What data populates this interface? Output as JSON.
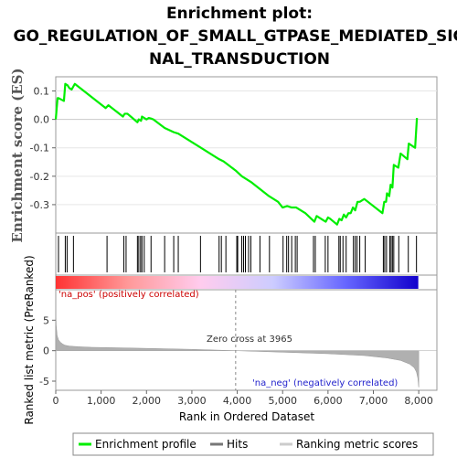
{
  "title_lines": [
    "Enrichment plot:",
    "GO_REGULATION_OF_SMALL_GTPASE_MEDIATED_SIG",
    "NAL_TRANSDUCTION"
  ],
  "chart_data": {
    "type": "line",
    "title": "Enrichment plot: GO_REGULATION_OF_SMALL_GTPASE_MEDIATED_SIGNAL_TRANSDUCTION",
    "xlabel": "Rank in Ordered Dataset",
    "es_ylabel": "Enrichment score (ES)",
    "metric_ylabel": "Ranked list metric (PreRanked)",
    "xlim": [
      0,
      8400
    ],
    "x_ticks": [
      0,
      1000,
      2000,
      3000,
      4000,
      5000,
      6000,
      7000,
      8000
    ],
    "x_tick_labels": [
      "0",
      "1,000",
      "2,000",
      "3,000",
      "4,000",
      "5,000",
      "6,000",
      "7,000",
      "8,000"
    ],
    "es_ylim": [
      -0.4,
      0.15
    ],
    "es_ticks": [
      0.1,
      0.0,
      -0.1,
      -0.2,
      -0.3
    ],
    "es_tick_labels": [
      "0.1",
      "0.0",
      "-0.1",
      "-0.2",
      "-0.3"
    ],
    "metric_ylim": [
      -6.5,
      10
    ],
    "metric_ticks": [
      5,
      0,
      -5
    ],
    "metric_tick_labels": [
      "5",
      "0",
      "-5"
    ],
    "zero_cross": 3965,
    "zero_cross_label": "Zero cross at 3965",
    "pos_label": "'na_pos' (positively correlated)",
    "neg_label": "'na_neg' (negatively correlated)",
    "series": [
      {
        "name": "Enrichment profile",
        "color": "#00ee00",
        "x": [
          0,
          40,
          60,
          180,
          210,
          260,
          300,
          350,
          420,
          1100,
          1160,
          1480,
          1520,
          1580,
          1800,
          1830,
          1880,
          1900,
          1950,
          2000,
          2050,
          2100,
          2150,
          2400,
          2600,
          2700,
          3200,
          3600,
          3700,
          3800,
          3965,
          4100,
          4200,
          4300,
          4700,
          4900,
          5000,
          5100,
          5200,
          5300,
          5500,
          5700,
          5750,
          5900,
          5950,
          6000,
          6050,
          6200,
          6250,
          6300,
          6350,
          6400,
          6450,
          6500,
          6550,
          6600,
          6650,
          6700,
          6800,
          7200,
          7240,
          7280,
          7300,
          7350,
          7380,
          7420,
          7450,
          7550,
          7600,
          7750,
          7780,
          7920,
          7960
        ],
        "y": [
          0.0,
          0.075,
          0.075,
          0.065,
          0.125,
          0.12,
          0.11,
          0.105,
          0.125,
          0.04,
          0.05,
          0.01,
          0.02,
          0.02,
          -0.01,
          0.0,
          -0.005,
          0.01,
          0.005,
          0.0,
          0.005,
          0.003,
          0.0,
          -0.03,
          -0.045,
          -0.05,
          -0.1,
          -0.14,
          -0.148,
          -0.16,
          -0.18,
          -0.2,
          -0.21,
          -0.22,
          -0.27,
          -0.29,
          -0.31,
          -0.305,
          -0.31,
          -0.31,
          -0.33,
          -0.36,
          -0.34,
          -0.355,
          -0.36,
          -0.345,
          -0.35,
          -0.37,
          -0.35,
          -0.355,
          -0.335,
          -0.345,
          -0.33,
          -0.33,
          -0.31,
          -0.32,
          -0.29,
          -0.29,
          -0.28,
          -0.33,
          -0.29,
          -0.29,
          -0.26,
          -0.27,
          -0.23,
          -0.24,
          -0.16,
          -0.17,
          -0.12,
          -0.14,
          -0.085,
          -0.1,
          0.005
        ]
      },
      {
        "name": "Hits",
        "color": "#000000",
        "x": [
          60,
          210,
          250,
          390,
          1130,
          1500,
          1550,
          1800,
          1830,
          1870,
          1900,
          1950,
          2100,
          2400,
          2600,
          2700,
          3190,
          3600,
          3650,
          3750,
          3990,
          4010,
          4100,
          4140,
          4180,
          4250,
          4300,
          4500,
          4710,
          5010,
          5090,
          5130,
          5200,
          5280,
          5320,
          5680,
          5720,
          5940,
          6000,
          6240,
          6270,
          6330,
          6400,
          6560,
          6600,
          6640,
          6700,
          6820,
          7220,
          7250,
          7290,
          7360,
          7390,
          7420,
          7450,
          7560,
          7770,
          7950
        ]
      },
      {
        "name": "Ranking metric scores",
        "color": "#b0b0b0",
        "x": [
          0,
          10,
          30,
          60,
          100,
          150,
          200,
          300,
          500,
          800,
          1200,
          2000,
          3000,
          3965,
          5000,
          6000,
          6800,
          7300,
          7600,
          7800,
          7900,
          7950,
          7980,
          8000
        ],
        "y": [
          6.8,
          4.2,
          2.5,
          1.8,
          1.4,
          1.1,
          0.9,
          0.75,
          0.65,
          0.55,
          0.5,
          0.38,
          0.22,
          0.0,
          -0.25,
          -0.5,
          -0.8,
          -1.2,
          -1.6,
          -2.2,
          -2.8,
          -3.5,
          -4.5,
          -6.0
        ]
      }
    ],
    "heatmap_gradient": [
      "#ff3333",
      "#ff9999",
      "#ffccee",
      "#ccccff",
      "#6666ff",
      "#1100cc"
    ],
    "legend": [
      "Enrichment profile",
      "Hits",
      "Ranking metric scores"
    ]
  }
}
